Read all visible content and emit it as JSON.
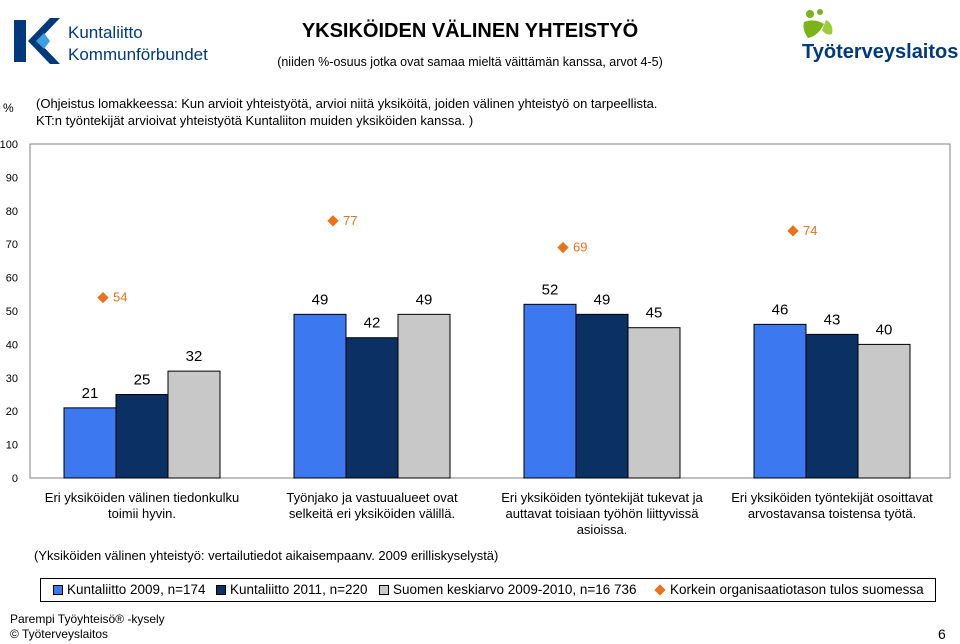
{
  "header": {
    "title": "YKSIKÖIDEN VÄLINEN YHTEISTYÖ",
    "subtitle": "(niiden %-osuus jotka ovat samaa mieltä väittämän kanssa, arvot 4-5)",
    "logo_left_line1": "Kuntaliitto",
    "logo_left_line2": "Kommunförbundet",
    "logo_right_text": "Työterveyslaitos"
  },
  "instruction": {
    "line1": "(Ohjeistus lomakkeessa: Kun arvioit yhteistyötä, arvioi niitä yksiköitä, joiden välinen yhteistyö on tarpeellista.",
    "line2": "KT:n työntekijät arvioivat yhteistyötä Kuntaliiton muiden yksiköiden kanssa. )"
  },
  "note": "(Yksiköiden välinen yhteistyö: vertailutiedot aikaisempaanv. 2009 erilliskyselystä)",
  "footer": {
    "line1": "Parempi Työyhteisö® -kysely",
    "line2": "© Työterveyslaitos",
    "page_number": "6"
  },
  "colors": {
    "kuntaliitto_2009": "#3c78f0",
    "kuntaliitto_2011": "#0a3064",
    "suomen_keskiarvo": "#c8c8c8",
    "korkein": "#e8731b",
    "logo_blue": "#003a7d",
    "logo_green": "#7bb31a"
  },
  "chart_data": {
    "type": "bar",
    "y_unit_label": "%",
    "ylim": [
      0,
      100
    ],
    "yticks": [
      0,
      10,
      20,
      30,
      40,
      50,
      60,
      70,
      80,
      90,
      100
    ],
    "categories": [
      "Eri yksiköiden välinen tiedonkulku toimii hyvin.",
      "Työnjako ja vastuualueet ovat selkeitä eri yksiköiden välillä.",
      "Eri yksiköiden työntekijät tukevat ja auttavat toisiaan työhön liittyvissä asioissa.",
      "Eri yksiköiden työntekijät osoittavat arvostavansa toistensa työtä."
    ],
    "category_lines": [
      [
        "Eri yksiköiden välinen tiedonkulku",
        "toimii hyvin."
      ],
      [
        "Työnjako ja vastuualueet ovat",
        "selkeitä eri yksiköiden välillä."
      ],
      [
        "Eri yksiköiden työntekijät tukevat ja",
        "auttavat toisiaan työhön liittyvissä",
        "asioissa."
      ],
      [
        "Eri yksiköiden työntekijät osoittavat",
        "arvostavansa toistensa työtä."
      ]
    ],
    "series": [
      {
        "name": "Kuntaliitto 2009, n=174",
        "values": [
          21,
          49,
          52,
          46
        ]
      },
      {
        "name": "Kuntaliitto 2011, n=220",
        "values": [
          25,
          42,
          49,
          43
        ]
      },
      {
        "name": "Suomen keskiarvo 2009-2010, n=16 736",
        "values": [
          32,
          49,
          45,
          40
        ]
      }
    ],
    "markers": {
      "name": "Korkein organisaatiotason tulos suomessa",
      "values": [
        54,
        77,
        69,
        74
      ]
    },
    "grid": false,
    "legend_position": "bottom"
  }
}
